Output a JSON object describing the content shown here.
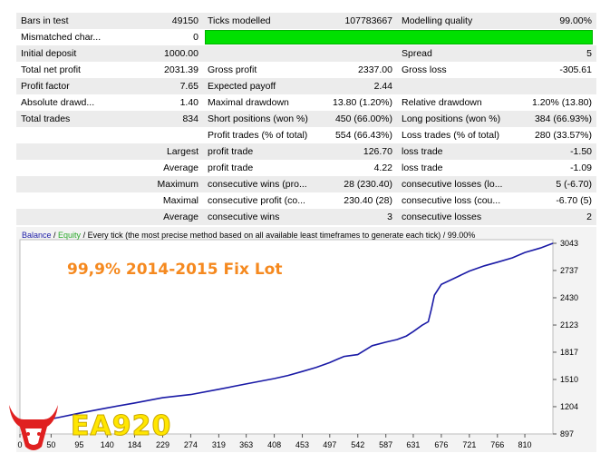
{
  "rows": [
    [
      "Bars in test",
      "49150",
      "Ticks modelled",
      "107783667",
      "Modelling quality",
      "99.00%"
    ],
    [
      "Mismatched char...",
      "0",
      "",
      "",
      "",
      ""
    ],
    [
      "Initial deposit",
      "1000.00",
      "",
      "",
      "Spread",
      "5"
    ],
    [
      "Total net profit",
      "2031.39",
      "Gross profit",
      "2337.00",
      "Gross loss",
      "-305.61"
    ],
    [
      "Profit factor",
      "7.65",
      "Expected payoff",
      "2.44",
      "",
      ""
    ],
    [
      "Absolute drawd...",
      "1.40",
      "Maximal drawdown",
      "13.80 (1.20%)",
      "Relative drawdown",
      "1.20% (13.80)"
    ],
    [
      "Total trades",
      "834",
      "Short positions (won %)",
      "450 (66.00%)",
      "Long positions (won %)",
      "384 (66.93%)"
    ],
    [
      "",
      "",
      "Profit trades (% of total)",
      "554 (66.43%)",
      "Loss trades (% of total)",
      "280 (33.57%)"
    ],
    [
      "",
      "Largest",
      "profit trade",
      "126.70",
      "loss trade",
      "-1.50"
    ],
    [
      "",
      "Average",
      "profit trade",
      "4.22",
      "loss trade",
      "-1.09"
    ],
    [
      "",
      "Maximum",
      "consecutive wins (pro...",
      "28 (230.40)",
      "consecutive losses (lo...",
      "5 (-6.70)"
    ],
    [
      "",
      "Maximal",
      "consecutive profit (co...",
      "230.40 (28)",
      "consecutive loss (cou...",
      "-6.70 (5)"
    ],
    [
      "",
      "Average",
      "consecutive wins",
      "3",
      "consecutive losses",
      "2"
    ]
  ],
  "modelling_quality_fraction": 0.99,
  "legend": {
    "balance": "Balance",
    "sep1": " / ",
    "equity": "Equity",
    "rest": " / Every tick (the most precise method based on all available least timeframes to generate each tick) / 99.00%"
  },
  "overlay_title": "99,9% 2014-2015 Fix Lot",
  "brand": "EA920",
  "colors": {
    "balance_line": "#1a1aa6",
    "overlay_title": "#f5891f",
    "brand": "#ffe600",
    "logo": "#e02020",
    "quality_bar": "#00e000"
  },
  "chart_data": {
    "type": "line",
    "x_ticks": [
      "0",
      "50",
      "95",
      "140",
      "184",
      "229",
      "274",
      "319",
      "363",
      "408",
      "453",
      "497",
      "542",
      "587",
      "631",
      "676",
      "721",
      "766",
      "810"
    ],
    "y_ticks": [
      "3043",
      "2737",
      "2430",
      "2123",
      "1817",
      "1510",
      "1204",
      "897"
    ],
    "xlim": [
      0,
      855
    ],
    "ylim": [
      897,
      3043
    ],
    "series": [
      {
        "name": "Balance",
        "x": [
          0,
          30,
          60,
          95,
          140,
          184,
          229,
          274,
          319,
          363,
          408,
          430,
          453,
          475,
          497,
          510,
          520,
          542,
          565,
          587,
          605,
          620,
          631,
          645,
          655,
          660,
          665,
          676,
          700,
          721,
          745,
          766,
          790,
          810,
          835,
          855
        ],
        "y": [
          1000,
          1040,
          1080,
          1130,
          1190,
          1245,
          1305,
          1340,
          1400,
          1460,
          1520,
          1555,
          1600,
          1645,
          1700,
          1740,
          1770,
          1790,
          1890,
          1930,
          1960,
          2000,
          2050,
          2120,
          2160,
          2300,
          2460,
          2580,
          2660,
          2730,
          2790,
          2830,
          2880,
          2940,
          2990,
          3043
        ]
      }
    ]
  }
}
